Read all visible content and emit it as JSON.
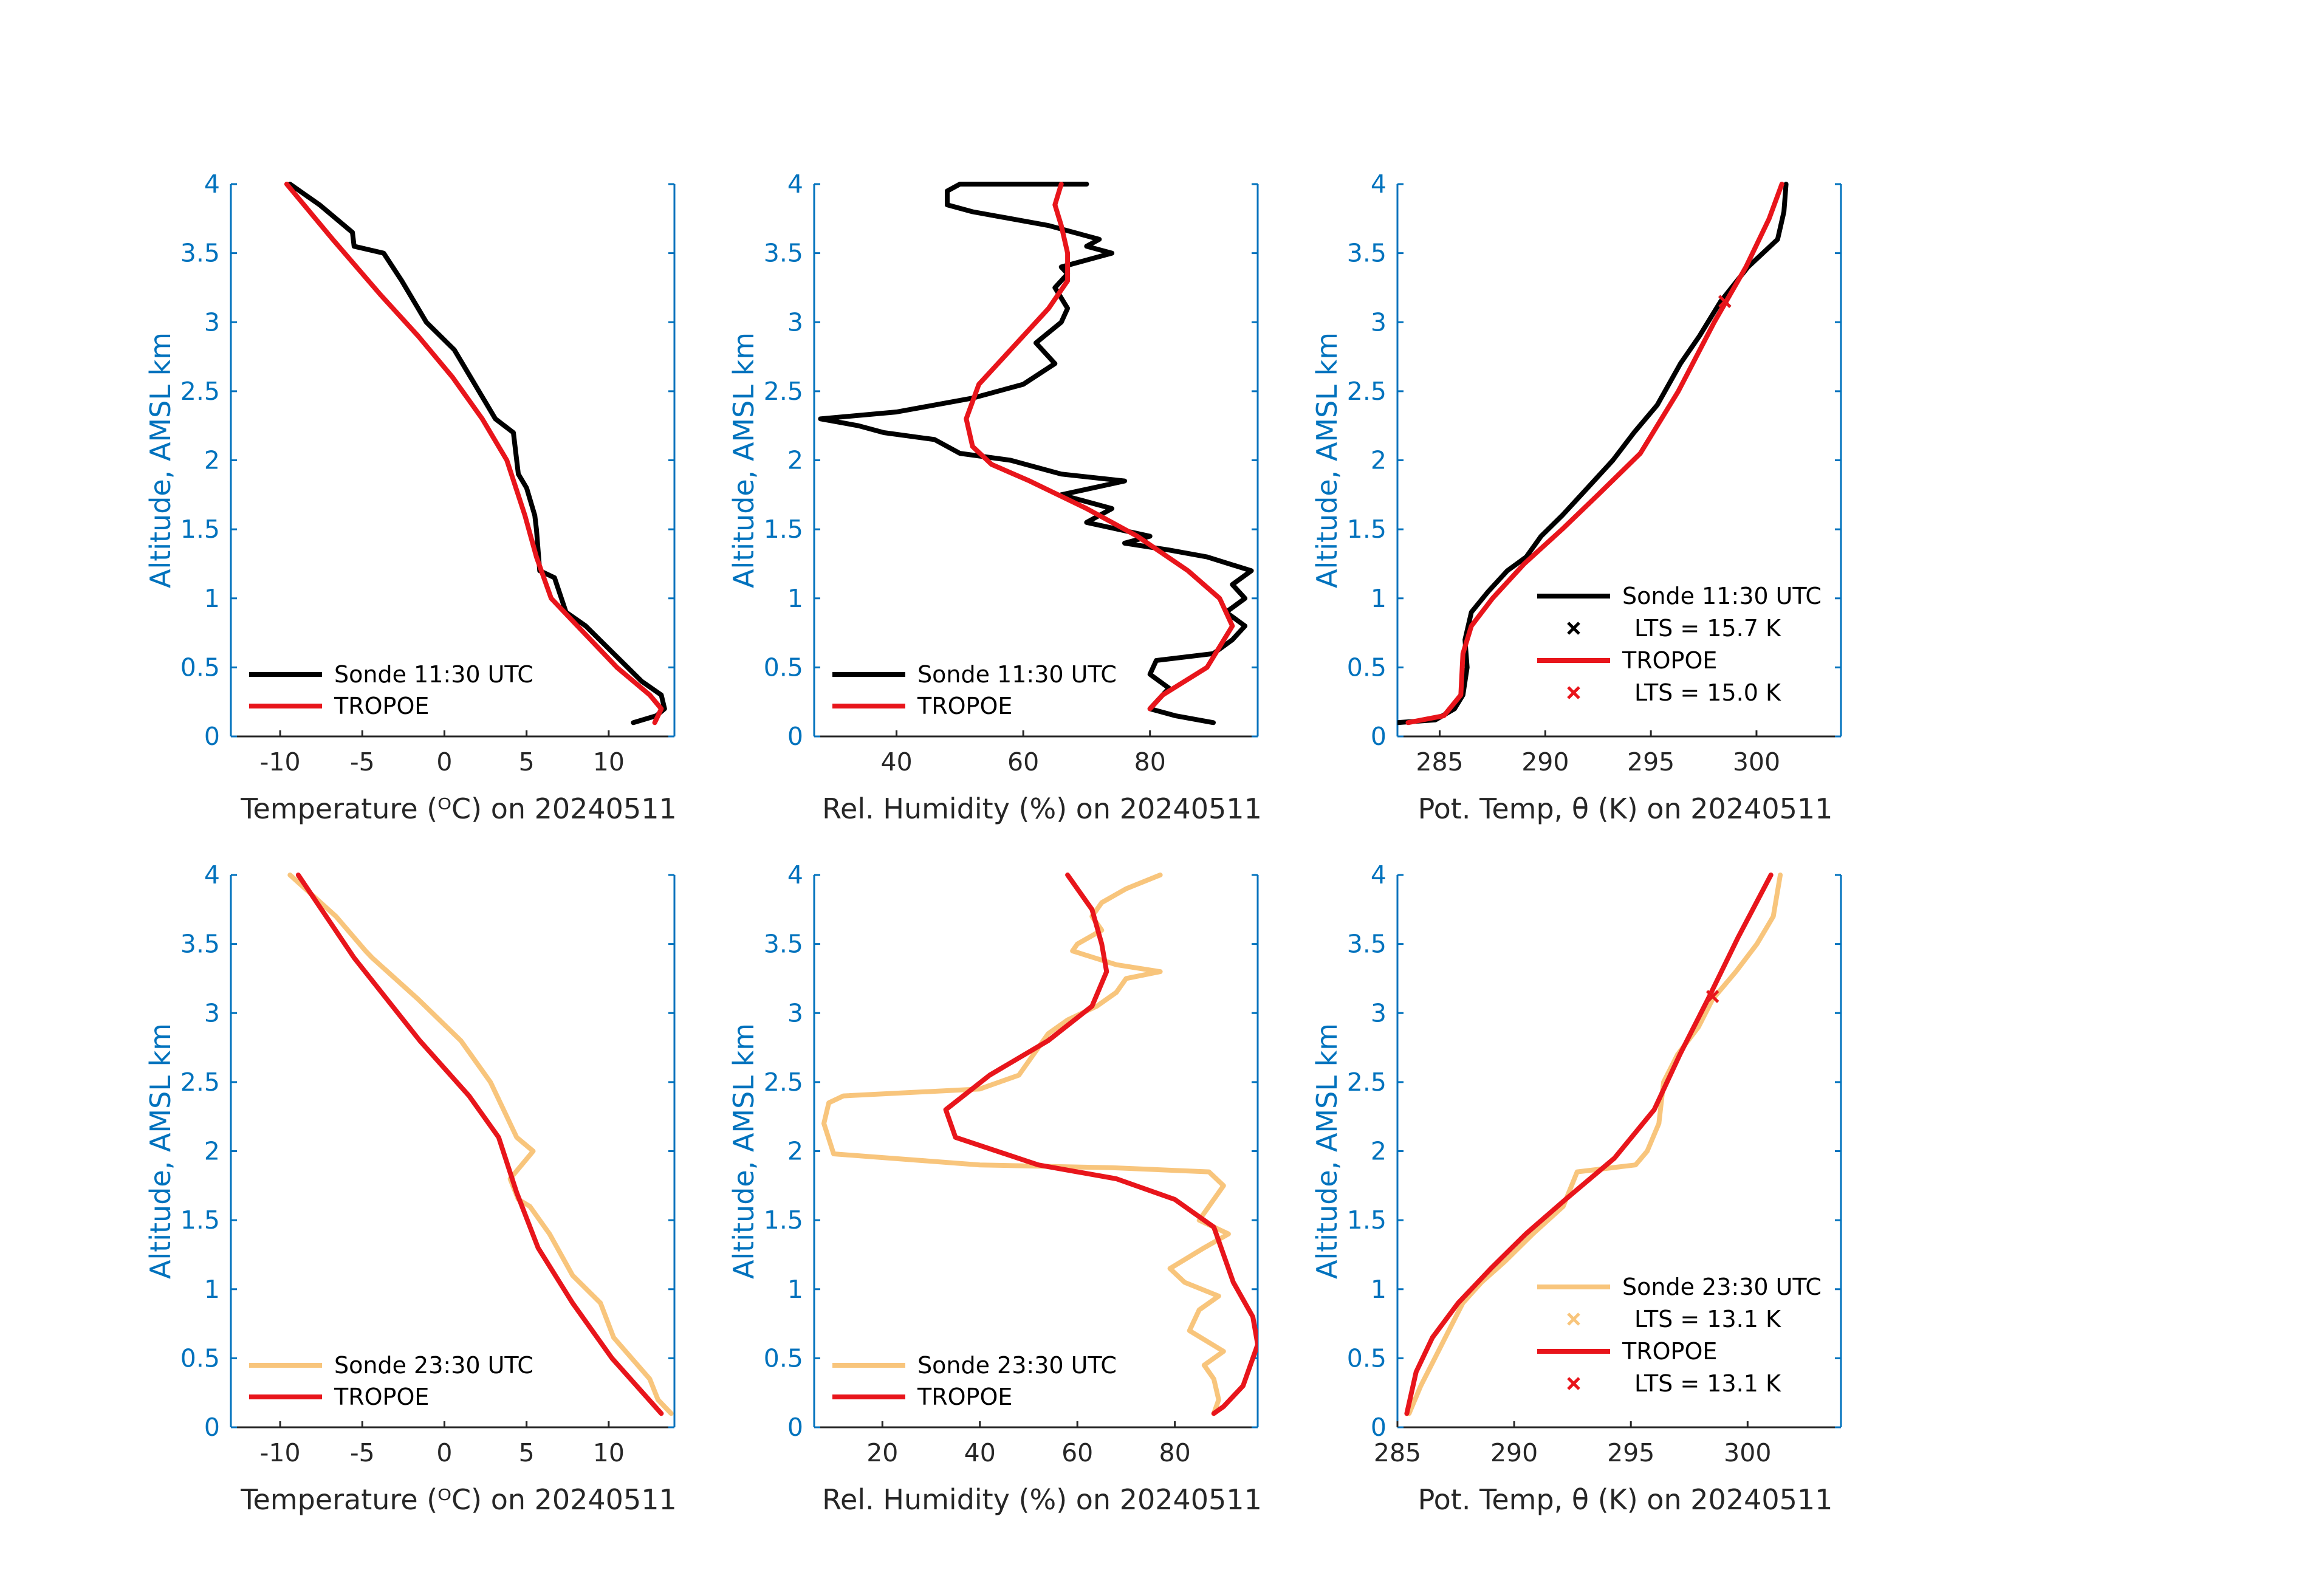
{
  "figure": {
    "background": "#ffffff"
  },
  "colors": {
    "sonde_day": "#000000",
    "sonde_night": "#F8C57C",
    "tropoe": "#E8151B",
    "y_axis": "#0072BD",
    "x_axis": "#262626"
  },
  "chart_data": [
    {
      "id": "temp_day",
      "type": "line",
      "xlabel": "Temperature (ᴼC) on 20240511",
      "ylabel": "Altitude, AMSL km",
      "xlim": [
        -13,
        14
      ],
      "ylim": [
        0,
        4
      ],
      "xticks": [
        -10,
        -5,
        0,
        5,
        10
      ],
      "xtick_labels": [
        "-10",
        "-5",
        "0",
        "5",
        "10"
      ],
      "yticks": [
        0,
        0.5,
        1,
        1.5,
        2,
        2.5,
        3,
        3.5,
        4
      ],
      "ytick_labels": [
        "0",
        "0.5",
        "1",
        "1.5",
        "2",
        "2.5",
        "3",
        "3.5",
        "4"
      ],
      "legend_position": "bottom-left",
      "series": [
        {
          "name": "Sonde 11:30 UTC",
          "color": "#000000",
          "x": [
            11.5,
            12.9,
            13.4,
            13.2,
            12.0,
            10.3,
            8.6,
            7.4,
            6.7,
            5.8,
            5.6,
            5.5,
            5.0,
            4.5,
            4.2,
            3.1,
            2.6,
            1.6,
            0.6,
            -1.1,
            -2.6,
            -3.7,
            -5.5,
            -5.6,
            -7.6,
            -9.4
          ],
          "y": [
            0.1,
            0.15,
            0.2,
            0.3,
            0.4,
            0.6,
            0.8,
            0.9,
            1.15,
            1.2,
            1.5,
            1.6,
            1.8,
            1.9,
            2.2,
            2.3,
            2.4,
            2.6,
            2.8,
            3.0,
            3.3,
            3.5,
            3.55,
            3.65,
            3.85,
            4.0
          ]
        },
        {
          "name": "TROPOE",
          "color": "#E8151B",
          "x": [
            12.8,
            13.2,
            12.5,
            10.5,
            8.5,
            6.5,
            5.6,
            4.9,
            3.8,
            2.3,
            0.5,
            -1.6,
            -3.9,
            -6.8,
            -9.6
          ],
          "y": [
            0.1,
            0.2,
            0.3,
            0.5,
            0.75,
            1.0,
            1.3,
            1.6,
            2.0,
            2.3,
            2.6,
            2.9,
            3.2,
            3.6,
            4.0
          ]
        }
      ]
    },
    {
      "id": "rh_day",
      "type": "line",
      "xlabel": "Rel. Humidity (%) on 20240511",
      "ylabel": "Altitude, AMSL km",
      "xlim": [
        27,
        97
      ],
      "ylim": [
        0,
        4
      ],
      "xticks": [
        40,
        60,
        80
      ],
      "xtick_labels": [
        "40",
        "60",
        "80"
      ],
      "yticks": [
        0,
        0.5,
        1,
        1.5,
        2,
        2.5,
        3,
        3.5,
        4
      ],
      "ytick_labels": [
        "0",
        "0.5",
        "1",
        "1.5",
        "2",
        "2.5",
        "3",
        "3.5",
        "4"
      ],
      "legend_position": "bottom-left",
      "series": [
        {
          "name": "Sonde 11:30 UTC",
          "color": "#000000",
          "x": [
            90,
            84,
            80,
            82,
            83,
            80,
            81,
            90,
            93,
            95,
            92,
            95,
            93,
            96,
            89,
            83,
            76,
            80,
            70,
            74,
            66,
            76,
            66,
            62,
            58,
            50,
            46,
            38,
            34,
            28,
            40,
            52,
            60,
            65,
            62,
            66,
            67,
            65,
            67,
            66,
            74,
            70,
            72,
            64,
            58,
            52,
            48,
            48,
            50,
            60,
            70
          ],
          "y": [
            0.1,
            0.15,
            0.2,
            0.3,
            0.35,
            0.45,
            0.55,
            0.6,
            0.7,
            0.8,
            0.9,
            1.0,
            1.1,
            1.2,
            1.3,
            1.35,
            1.4,
            1.45,
            1.55,
            1.65,
            1.75,
            1.85,
            1.9,
            1.95,
            2.0,
            2.05,
            2.15,
            2.2,
            2.25,
            2.3,
            2.35,
            2.45,
            2.55,
            2.7,
            2.85,
            3.0,
            3.1,
            3.25,
            3.35,
            3.4,
            3.5,
            3.55,
            3.6,
            3.7,
            3.75,
            3.8,
            3.85,
            3.95,
            4.0,
            4.0,
            4.0
          ]
        },
        {
          "name": "TROPOE",
          "color": "#E8151B",
          "x": [
            80,
            82,
            89,
            93,
            91,
            86,
            78,
            70,
            61,
            55,
            52,
            51,
            53,
            58,
            64,
            67,
            67,
            66,
            65,
            66
          ],
          "y": [
            0.2,
            0.3,
            0.5,
            0.8,
            1.0,
            1.2,
            1.45,
            1.65,
            1.85,
            1.97,
            2.1,
            2.3,
            2.55,
            2.8,
            3.1,
            3.3,
            3.5,
            3.7,
            3.85,
            4.0
          ]
        }
      ]
    },
    {
      "id": "theta_day",
      "type": "line",
      "xlabel": "Pot. Temp, θ (K) on 20240511",
      "ylabel": "Altitude, AMSL km",
      "xlim": [
        283,
        304
      ],
      "ylim": [
        0,
        4
      ],
      "xticks": [
        285,
        290,
        295,
        300
      ],
      "xtick_labels": [
        "285",
        "290",
        "295",
        "300"
      ],
      "yticks": [
        0,
        0.5,
        1,
        1.5,
        2,
        2.5,
        3,
        3.5,
        4
      ],
      "ytick_labels": [
        "0",
        "0.5",
        "1",
        "1.5",
        "2",
        "2.5",
        "3",
        "3.5",
        "4"
      ],
      "legend_position": "bottom-right",
      "series": [
        {
          "name": "Sonde 11:30 UTC",
          "color": "#000000",
          "lts_label": "LTS = 15.7 K",
          "lts_point": {
            "x": 298.5,
            "y": 3.15
          },
          "x": [
            283.0,
            284.8,
            285.7,
            286.1,
            286.3,
            286.2,
            286.5,
            287.3,
            288.2,
            289.1,
            289.8,
            290.8,
            292.0,
            293.2,
            294.2,
            295.3,
            296.4,
            297.3,
            298.3,
            299.6,
            301.0,
            301.3,
            301.4
          ],
          "y": [
            0.1,
            0.12,
            0.2,
            0.3,
            0.5,
            0.7,
            0.9,
            1.05,
            1.2,
            1.3,
            1.45,
            1.6,
            1.8,
            2.0,
            2.2,
            2.4,
            2.7,
            2.9,
            3.15,
            3.4,
            3.6,
            3.8,
            4.0
          ]
        },
        {
          "name": "TROPOE",
          "color": "#E8151B",
          "lts_label": "LTS = 15.0 K",
          "lts_point": {
            "x": 298.5,
            "y": 3.15
          },
          "x": [
            283.5,
            285.2,
            286.0,
            286.1,
            286.5,
            287.5,
            289.0,
            290.8,
            292.5,
            294.5,
            296.3,
            298.0,
            299.5,
            300.6,
            301.2
          ],
          "y": [
            0.1,
            0.15,
            0.3,
            0.6,
            0.8,
            1.0,
            1.25,
            1.5,
            1.75,
            2.05,
            2.5,
            3.0,
            3.4,
            3.75,
            4.0
          ]
        }
      ]
    },
    {
      "id": "temp_night",
      "type": "line",
      "xlabel": "Temperature (ᴼC) on 20240511",
      "ylabel": "Altitude, AMSL km",
      "xlim": [
        -13,
        14
      ],
      "ylim": [
        0,
        4
      ],
      "xticks": [
        -10,
        -5,
        0,
        5,
        10
      ],
      "xtick_labels": [
        "-10",
        "-5",
        "0",
        "5",
        "10"
      ],
      "yticks": [
        0,
        0.5,
        1,
        1.5,
        2,
        2.5,
        3,
        3.5,
        4
      ],
      "ytick_labels": [
        "0",
        "0.5",
        "1",
        "1.5",
        "2",
        "2.5",
        "3",
        "3.5",
        "4"
      ],
      "legend_position": "bottom-left",
      "series": [
        {
          "name": "Sonde 23:30 UTC",
          "color": "#F8C57C",
          "x": [
            13.8,
            13.0,
            12.5,
            10.3,
            9.5,
            7.8,
            6.4,
            5.2,
            4.5,
            4.0,
            5.4,
            4.4,
            3.6,
            2.8,
            1.0,
            -1.6,
            -4.4,
            -4.8,
            -6.6,
            -9.4
          ],
          "y": [
            0.1,
            0.2,
            0.35,
            0.65,
            0.9,
            1.1,
            1.4,
            1.6,
            1.65,
            1.8,
            2.0,
            2.1,
            2.3,
            2.5,
            2.8,
            3.1,
            3.4,
            3.45,
            3.7,
            4.0
          ]
        },
        {
          "name": "TROPOE",
          "color": "#E8151B",
          "x": [
            13.2,
            10.2,
            7.8,
            5.7,
            4.4,
            3.3,
            1.5,
            -1.5,
            -5.5,
            -8.9
          ],
          "y": [
            0.1,
            0.5,
            0.9,
            1.3,
            1.7,
            2.1,
            2.4,
            2.8,
            3.4,
            4.0
          ]
        }
      ]
    },
    {
      "id": "rh_night",
      "type": "line",
      "xlabel": "Rel. Humidity (%) on 20240511",
      "ylabel": "Altitude, AMSL km",
      "xlim": [
        6,
        97
      ],
      "ylim": [
        0,
        4
      ],
      "xticks": [
        20,
        40,
        60,
        80
      ],
      "xtick_labels": [
        "20",
        "40",
        "60",
        "80"
      ],
      "yticks": [
        0,
        0.5,
        1,
        1.5,
        2,
        2.5,
        3,
        3.5,
        4
      ],
      "ytick_labels": [
        "0",
        "0.5",
        "1",
        "1.5",
        "2",
        "2.5",
        "3",
        "3.5",
        "4"
      ],
      "legend_position": "bottom-left",
      "series": [
        {
          "name": "Sonde 23:30 UTC",
          "color": "#F8C57C",
          "x": [
            88,
            89,
            88,
            86,
            90,
            83,
            85,
            89,
            82,
            79,
            86,
            91,
            85,
            90,
            87,
            67,
            40,
            10,
            8,
            9,
            12,
            40,
            48,
            52,
            54,
            58,
            64,
            68,
            70,
            77,
            68,
            59,
            60,
            65,
            63,
            65,
            70,
            77
          ],
          "y": [
            0.1,
            0.2,
            0.35,
            0.45,
            0.55,
            0.7,
            0.85,
            0.95,
            1.05,
            1.15,
            1.3,
            1.4,
            1.5,
            1.75,
            1.85,
            1.88,
            1.9,
            1.98,
            2.2,
            2.35,
            2.4,
            2.45,
            2.55,
            2.75,
            2.85,
            2.95,
            3.05,
            3.15,
            3.25,
            3.3,
            3.35,
            3.45,
            3.5,
            3.6,
            3.7,
            3.8,
            3.9,
            4.0
          ]
        },
        {
          "name": "TROPOE",
          "color": "#E8151B",
          "x": [
            88,
            90,
            94,
            97,
            96,
            92,
            88,
            80,
            68,
            52,
            35,
            33,
            42,
            54,
            63,
            66,
            65,
            63,
            58
          ],
          "y": [
            0.1,
            0.15,
            0.3,
            0.6,
            0.8,
            1.05,
            1.45,
            1.65,
            1.8,
            1.9,
            2.1,
            2.3,
            2.55,
            2.8,
            3.05,
            3.3,
            3.5,
            3.75,
            4.0
          ]
        }
      ]
    },
    {
      "id": "theta_night",
      "type": "line",
      "xlabel": "Pot. Temp, θ (K) on 20240511",
      "ylabel": "Altitude, AMSL km",
      "xlim": [
        285,
        304
      ],
      "ylim": [
        0,
        4
      ],
      "xticks": [
        285,
        290,
        295,
        300
      ],
      "xtick_labels": [
        "285",
        "290",
        "295",
        "300"
      ],
      "yticks": [
        0,
        0.5,
        1,
        1.5,
        2,
        2.5,
        3,
        3.5,
        4
      ],
      "ytick_labels": [
        "0",
        "0.5",
        "1",
        "1.5",
        "2",
        "2.5",
        "3",
        "3.5",
        "4"
      ],
      "legend_position": "bottom-right",
      "series": [
        {
          "name": "Sonde 23:30 UTC",
          "color": "#F8C57C",
          "lts_label": "LTS = 13.1 K",
          "lts_point": {
            "x": 298.5,
            "y": 3.12
          },
          "x": [
            285.5,
            286.0,
            286.6,
            287.2,
            287.8,
            288.6,
            289.6,
            290.8,
            292.1,
            292.7,
            295.2,
            295.7,
            296.2,
            296.4,
            297.0,
            297.9,
            298.5,
            299.5,
            300.4,
            301.1,
            301.4
          ],
          "y": [
            0.1,
            0.3,
            0.5,
            0.7,
            0.9,
            1.05,
            1.2,
            1.4,
            1.6,
            1.85,
            1.9,
            2.0,
            2.2,
            2.5,
            2.7,
            2.9,
            3.1,
            3.3,
            3.5,
            3.7,
            4.0
          ]
        },
        {
          "name": "TROPOE",
          "color": "#E8151B",
          "lts_label": "LTS = 13.1 K",
          "lts_point": {
            "x": 298.5,
            "y": 3.12
          },
          "x": [
            285.4,
            285.8,
            286.5,
            287.6,
            289.0,
            290.5,
            292.2,
            294.3,
            296.0,
            297.1,
            298.3,
            299.6,
            301.0
          ],
          "y": [
            0.1,
            0.4,
            0.65,
            0.9,
            1.15,
            1.4,
            1.65,
            1.95,
            2.3,
            2.7,
            3.1,
            3.55,
            4.0
          ]
        }
      ]
    }
  ]
}
